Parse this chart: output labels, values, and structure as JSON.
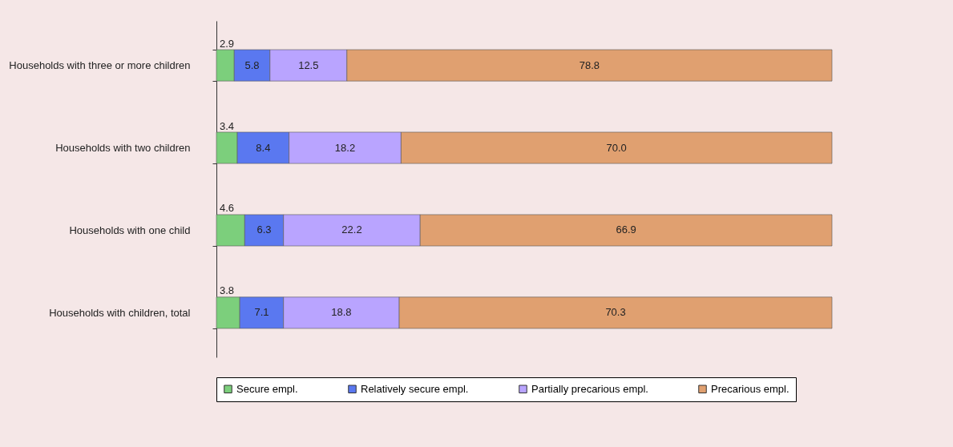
{
  "chart_data": {
    "type": "bar",
    "orientation": "horizontal",
    "stacked": true,
    "legend": "bottom",
    "categories": [
      "Households with three or more children",
      "Households with two children",
      "Households with one child",
      "Households with children, total"
    ],
    "series": [
      {
        "name": "Secure empl.",
        "color": "#7ccf7c",
        "values": [
          2.9,
          3.4,
          4.6,
          3.8
        ],
        "value_labels": [
          "2.9",
          "3.4",
          "4.6",
          "3.8"
        ]
      },
      {
        "name": "Relatively secure empl.",
        "color": "#5a78f0",
        "values": [
          5.8,
          8.4,
          6.3,
          7.1
        ],
        "value_labels": [
          "5.8",
          "8.4",
          "6.3",
          "7.1"
        ]
      },
      {
        "name": "Partially precarious empl.",
        "color": "#b9a4ff",
        "values": [
          12.5,
          18.2,
          22.2,
          18.8
        ],
        "value_labels": [
          "12.5",
          "18.2",
          "22.2",
          "18.8"
        ]
      },
      {
        "name": "Precarious empl.",
        "color": "#e0a070",
        "values": [
          78.8,
          70.0,
          66.9,
          70.3
        ],
        "value_labels": [
          "78.8",
          "70.0",
          "66.9",
          "70.3"
        ]
      }
    ]
  }
}
